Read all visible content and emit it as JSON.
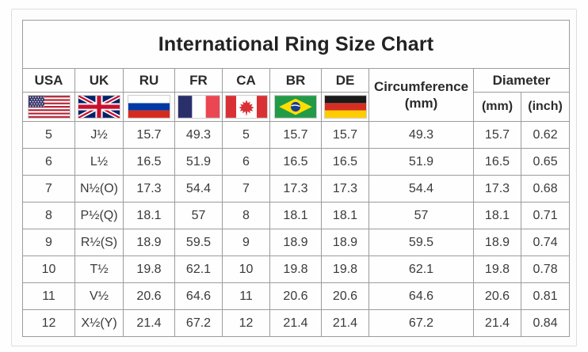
{
  "title": "International Ring Size Chart",
  "chart_data": {
    "type": "table",
    "title": "International Ring Size Chart",
    "country_columns": [
      {
        "label": "USA",
        "flag": "usa-flag-icon"
      },
      {
        "label": "UK",
        "flag": "uk-flag-icon"
      },
      {
        "label": "RU",
        "flag": "russia-flag-icon"
      },
      {
        "label": "FR",
        "flag": "france-flag-icon"
      },
      {
        "label": "CA",
        "flag": "canada-flag-icon"
      },
      {
        "label": "BR",
        "flag": "brazil-flag-icon"
      },
      {
        "label": "DE",
        "flag": "germany-flag-icon"
      }
    ],
    "circumference": {
      "label": "Circumference",
      "unit": "(mm)"
    },
    "diameter": {
      "label": "Diameter",
      "units": [
        "(mm)",
        "(inch)"
      ]
    },
    "column_order": [
      "USA",
      "UK",
      "RU",
      "FR",
      "CA",
      "BR",
      "DE",
      "Circumference (mm)",
      "Diameter (mm)",
      "Diameter (inch)"
    ],
    "rows": [
      [
        "5",
        "J½",
        "15.7",
        "49.3",
        "5",
        "15.7",
        "15.7",
        "49.3",
        "15.7",
        "0.62"
      ],
      [
        "6",
        "L½",
        "16.5",
        "51.9",
        "6",
        "16.5",
        "16.5",
        "51.9",
        "16.5",
        "0.65"
      ],
      [
        "7",
        "N½(O)",
        "17.3",
        "54.4",
        "7",
        "17.3",
        "17.3",
        "54.4",
        "17.3",
        "0.68"
      ],
      [
        "8",
        "P½(Q)",
        "18.1",
        "57",
        "8",
        "18.1",
        "18.1",
        "57",
        "18.1",
        "0.71"
      ],
      [
        "9",
        "R½(S)",
        "18.9",
        "59.5",
        "9",
        "18.9",
        "18.9",
        "59.5",
        "18.9",
        "0.74"
      ],
      [
        "10",
        "T½",
        "19.8",
        "62.1",
        "10",
        "19.8",
        "19.8",
        "62.1",
        "19.8",
        "0.78"
      ],
      [
        "11",
        "V½",
        "20.6",
        "64.6",
        "11",
        "20.6",
        "20.6",
        "64.6",
        "20.6",
        "0.81"
      ],
      [
        "12",
        "X½(Y)",
        "21.4",
        "67.2",
        "12",
        "21.4",
        "21.4",
        "67.2",
        "21.4",
        "0.84"
      ]
    ]
  },
  "colors": {
    "table_border": "#9c9c9c",
    "outer_frame_border": "#dedede",
    "title_text": "#222222",
    "header_text": "#2b2b2b",
    "cell_text": "#3a3a3a",
    "background": "#fefefe"
  },
  "flag_colors": {
    "white": "#FFFFFF",
    "usa_red": "#B22234",
    "usa_blue": "#3C3B6E",
    "uk_blue": "#012169",
    "uk_red": "#C8102E",
    "ru_blue": "#0039A6",
    "ru_red": "#D52B1E",
    "fr_blue": "#292F6B",
    "fr_red": "#EA4753",
    "ca_red": "#D93036",
    "br_green": "#239A47",
    "br_yellow": "#FFDF00",
    "br_blue": "#1B3C8C",
    "de_black": "#1A1A1A",
    "de_red": "#D42E22",
    "de_gold": "#FFCC00"
  }
}
